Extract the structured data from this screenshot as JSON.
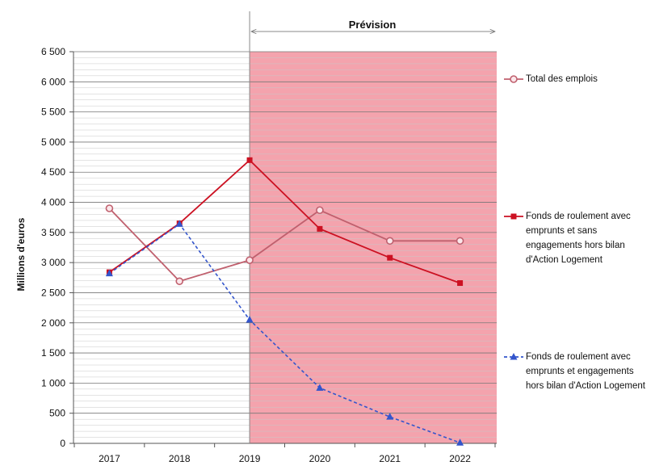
{
  "chart_data": {
    "type": "line",
    "x": [
      "2017",
      "2018",
      "2019",
      "2020",
      "2021",
      "2022"
    ],
    "y_ticks": [
      "0",
      "500",
      "1 000",
      "1 500",
      "2 000",
      "2 500",
      "3 000",
      "3 500",
      "4 000",
      "4 500",
      "5 000",
      "5 500",
      "6 000",
      "6 500"
    ],
    "ylim": [
      0,
      6500
    ],
    "ylabel": "Millions d'euros",
    "forecast_label": "Prévision",
    "forecast_start": "2019",
    "series": [
      {
        "name": "Total des emplois",
        "values": [
          3900,
          2690,
          3040,
          3870,
          3360,
          3360
        ],
        "color": "#c0606e",
        "marker": "circle",
        "dash": "solid"
      },
      {
        "name": "Fonds de roulement avec emprunts et sans engagements hors bilan d'Action Logement",
        "values": [
          2840,
          3650,
          4700,
          3560,
          3080,
          2660
        ],
        "color": "#cc1122",
        "marker": "square",
        "dash": "solid"
      },
      {
        "name": "Fonds de roulement avec emprunts et engagements hors bilan d'Action Logement",
        "values": [
          2820,
          3640,
          2050,
          920,
          440,
          10
        ],
        "color": "#3355cc",
        "marker": "triangle",
        "dash": "dashed"
      }
    ],
    "grid": true,
    "legend_position": "right",
    "forecast_fill": "#f4a3ad"
  }
}
